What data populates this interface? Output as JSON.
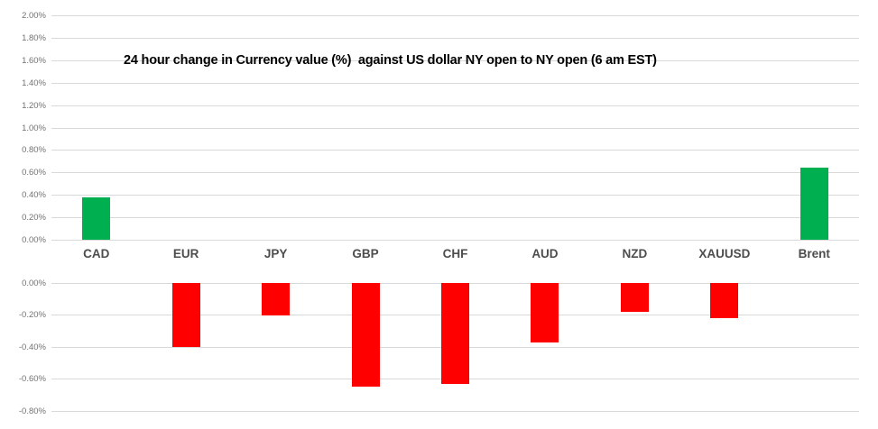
{
  "chart_data": {
    "type": "bar",
    "title": "24 hour change in Currency value (%)  against US dollar NY open to NY open (6 am EST)",
    "categories": [
      "CAD",
      "EUR",
      "JPY",
      "GBP",
      "CHF",
      "AUD",
      "NZD",
      "XAUUSD",
      "Brent"
    ],
    "values": [
      0.38,
      -0.4,
      -0.2,
      -0.65,
      -0.63,
      -0.37,
      -0.18,
      -0.22,
      0.65
    ],
    "value_unit": "percent change vs USD",
    "positive_axis": {
      "max": 2.0,
      "min": 0.0,
      "step": 0.2,
      "tick_labels": [
        "2.00%",
        "1.80%",
        "1.60%",
        "1.40%",
        "1.20%",
        "1.00%",
        "0.80%",
        "0.60%",
        "0.40%",
        "0.20%",
        "0.00%"
      ]
    },
    "negative_axis": {
      "max": 0.0,
      "min": -0.8,
      "step": 0.2,
      "tick_labels": [
        "0.00%",
        "-0.20%",
        "-0.40%",
        "-0.60%",
        "-0.80%"
      ]
    },
    "grid": true,
    "legend": "none",
    "colors": {
      "positive_bar": "#00B050",
      "negative_bar": "#FF0000",
      "gridline": "#D9D9D9",
      "tick_label": "#737373",
      "category_label": "#4D4D4D",
      "title": "#000000"
    }
  }
}
